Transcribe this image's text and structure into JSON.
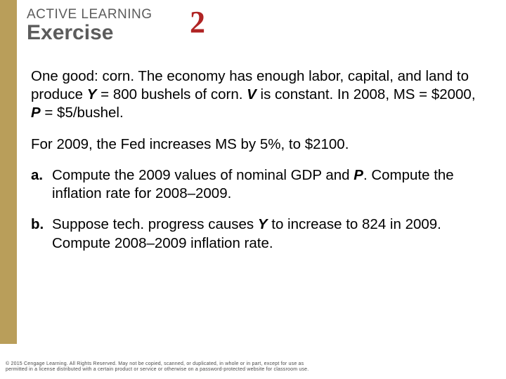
{
  "header": {
    "kicker": "ACTIVE LEARNING",
    "title": "Exercise",
    "number": "2"
  },
  "body": {
    "p1_a": "One good:  corn.  The economy has enough labor, capital, and land to produce ",
    "p1_y": "Y",
    "p1_b": " = 800 bushels of corn.  ",
    "p1_v": "V",
    "p1_c": " is constant.  In 2008, MS = $2000, ",
    "p1_p": "P",
    "p1_d": " = $5/bushel.",
    "p2": "For 2009, the Fed increases MS by 5%, to $2100.",
    "a_marker": "a.",
    "a_text_1": "Compute the 2009 values of nominal GDP and ",
    "a_p": "P",
    "a_text_2": ". Compute the inflation rate for 2008–2009.",
    "b_marker": "b.",
    "b_text_1": "Suppose tech. progress causes ",
    "b_y": "Y",
    "b_text_2": "  to increase to 824 in 2009.  Compute 2008–2009 inflation rate."
  },
  "footer": {
    "line1": "© 2015 Cengage Learning. All Rights Reserved. May not be copied, scanned, or duplicated, in whole or in part, except for use as",
    "line2": "permitted in a license distributed with a certain product or service or otherwise on a password-protected website for classroom use."
  },
  "colors": {
    "gold": "#b99e5a",
    "red": "#b02424",
    "grey": "#5c5c5c"
  }
}
